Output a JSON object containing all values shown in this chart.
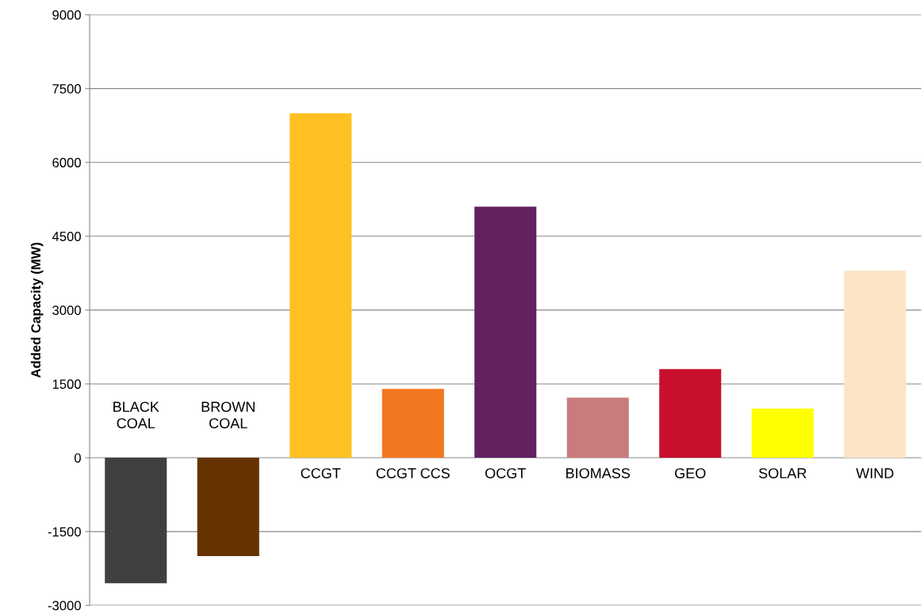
{
  "chart_data": {
    "type": "bar",
    "ylabel": "Added Capacity (MW)",
    "categories": [
      "BLACK\nCOAL",
      "BROWN\nCOAL",
      "CCGT",
      "CCGT CCS",
      "OCGT",
      "BIOMASS",
      "GEO",
      "SOLAR",
      "WIND"
    ],
    "values": [
      -2550,
      -2000,
      7000,
      1400,
      5100,
      1220,
      1800,
      1000,
      3800
    ],
    "colors": [
      "#404040",
      "#663300",
      "#ffc022",
      "#f37721",
      "#622260",
      "#c97b7d",
      "#c8102e",
      "#ffff00",
      "#fde3c5"
    ],
    "ylim": [
      -3000,
      9000
    ],
    "yticks": [
      -3000,
      -1500,
      0,
      1500,
      3000,
      4500,
      6000,
      7500,
      9000
    ],
    "grid": "y"
  }
}
